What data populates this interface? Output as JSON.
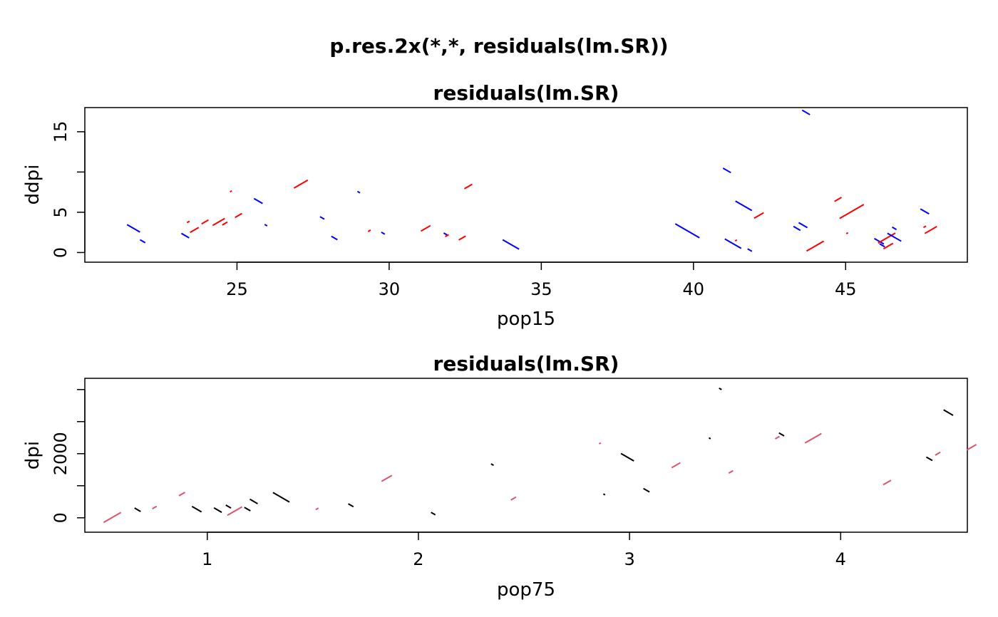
{
  "main_title": "p.res.2x(*,*, residuals(lm.SR))",
  "chart_data": [
    {
      "type": "scatter",
      "title": "residuals(lm.SR)",
      "xlabel": "pop15",
      "ylabel": "ddpi",
      "xlim": [
        20,
        49
      ],
      "ylim": [
        -1.2,
        18
      ],
      "x_ticks": [
        25,
        30,
        35,
        40,
        45
      ],
      "y_ticks": [
        0,
        5,
        10,
        15
      ],
      "y_tick_labels": [
        "0",
        "5",
        "",
        "15"
      ],
      "glyph": "residual segment: positive residual = rising red segment, negative residual = falling blue segment; length proportional to |residual|",
      "colors": {
        "positive": "#ff0000",
        "negative": "#0000ff"
      },
      "points": [
        {
          "x": 21.6,
          "y": 3.0,
          "r": -0.75
        },
        {
          "x": 21.9,
          "y": 1.4,
          "r": -0.3
        },
        {
          "x": 23.3,
          "y": 2.1,
          "r": -0.45
        },
        {
          "x": 23.4,
          "y": 3.8,
          "r": 0.15
        },
        {
          "x": 23.6,
          "y": 2.8,
          "r": 0.5
        },
        {
          "x": 23.95,
          "y": 3.8,
          "r": 0.4
        },
        {
          "x": 24.4,
          "y": 3.8,
          "r": 0.7
        },
        {
          "x": 24.6,
          "y": 3.6,
          "r": 0.3
        },
        {
          "x": 24.8,
          "y": 7.6,
          "r": 0.1
        },
        {
          "x": 25.05,
          "y": 4.6,
          "r": 0.4
        },
        {
          "x": 25.7,
          "y": 6.4,
          "r": -0.5
        },
        {
          "x": 25.95,
          "y": 3.4,
          "r": -0.15
        },
        {
          "x": 27.1,
          "y": 8.5,
          "r": 0.8
        },
        {
          "x": 27.8,
          "y": 4.3,
          "r": -0.25
        },
        {
          "x": 28.2,
          "y": 1.8,
          "r": -0.35
        },
        {
          "x": 29.0,
          "y": 7.5,
          "r": -0.15
        },
        {
          "x": 29.35,
          "y": 2.7,
          "r": 0.15
        },
        {
          "x": 29.8,
          "y": 2.4,
          "r": -0.2
        },
        {
          "x": 31.2,
          "y": 3.0,
          "r": 0.55
        },
        {
          "x": 31.85,
          "y": 2.3,
          "r": -0.2
        },
        {
          "x": 31.9,
          "y": 2.1,
          "r": 0.2
        },
        {
          "x": 32.4,
          "y": 1.8,
          "r": 0.4
        },
        {
          "x": 32.6,
          "y": 8.2,
          "r": 0.45
        },
        {
          "x": 34.0,
          "y": 1.0,
          "r": -0.95
        },
        {
          "x": 39.8,
          "y": 2.7,
          "r": -1.4
        },
        {
          "x": 41.1,
          "y": 10.2,
          "r": -0.45
        },
        {
          "x": 41.3,
          "y": 1.1,
          "r": -0.95
        },
        {
          "x": 41.4,
          "y": 1.5,
          "r": 0.1
        },
        {
          "x": 41.65,
          "y": 5.8,
          "r": -0.95
        },
        {
          "x": 41.85,
          "y": 0.3,
          "r": -0.25
        },
        {
          "x": 42.15,
          "y": 4.6,
          "r": 0.55
        },
        {
          "x": 43.4,
          "y": 3.0,
          "r": -0.4
        },
        {
          "x": 43.6,
          "y": 3.4,
          "r": -0.5
        },
        {
          "x": 43.7,
          "y": 17.4,
          "r": -0.45
        },
        {
          "x": 44.0,
          "y": 0.8,
          "r": 1.0
        },
        {
          "x": 44.75,
          "y": 6.6,
          "r": 0.4
        },
        {
          "x": 45.2,
          "y": 5.1,
          "r": 1.4
        },
        {
          "x": 45.05,
          "y": 2.4,
          "r": 0.1
        },
        {
          "x": 46.1,
          "y": 1.4,
          "r": -0.55
        },
        {
          "x": 46.2,
          "y": 0.9,
          "r": -0.3
        },
        {
          "x": 46.35,
          "y": 1.8,
          "r": 1.0
        },
        {
          "x": 46.4,
          "y": 0.8,
          "r": 0.55
        },
        {
          "x": 46.6,
          "y": 1.9,
          "r": -0.8
        },
        {
          "x": 46.6,
          "y": 3.0,
          "r": -0.25
        },
        {
          "x": 47.6,
          "y": 5.1,
          "r": -0.5
        },
        {
          "x": 47.6,
          "y": 3.2,
          "r": 0.15
        },
        {
          "x": 47.8,
          "y": 2.8,
          "r": 0.7
        }
      ]
    },
    {
      "type": "scatter",
      "title": "residuals(lm.SR)",
      "xlabel": "pop75",
      "ylabel": "dpi",
      "xlim": [
        0.42,
        4.6
      ],
      "ylim": [
        -450,
        4350
      ],
      "x_ticks": [
        1,
        2,
        3,
        4
      ],
      "y_ticks": [
        0,
        1000,
        2000,
        3000,
        4000
      ],
      "y_tick_labels": [
        "0",
        "",
        "2000",
        "",
        ""
      ],
      "glyph": "residual segment: positive residual = rising red segment, negative residual = falling black segment; length proportional to |residual|",
      "colors": {
        "positive": "#df536b",
        "negative": "#000000"
      },
      "points": [
        {
          "x": 0.55,
          "y": 10,
          "r": 1.0
        },
        {
          "x": 0.67,
          "y": 250,
          "r": -0.35
        },
        {
          "x": 0.75,
          "y": 320,
          "r": 0.25
        },
        {
          "x": 0.88,
          "y": 740,
          "r": 0.35
        },
        {
          "x": 0.95,
          "y": 270,
          "r": -0.55
        },
        {
          "x": 1.05,
          "y": 240,
          "r": -0.45
        },
        {
          "x": 1.1,
          "y": 350,
          "r": -0.3
        },
        {
          "x": 1.13,
          "y": 210,
          "r": 0.85
        },
        {
          "x": 1.19,
          "y": 270,
          "r": -0.35
        },
        {
          "x": 1.22,
          "y": 510,
          "r": -0.45
        },
        {
          "x": 1.35,
          "y": 640,
          "r": -0.95
        },
        {
          "x": 1.52,
          "y": 280,
          "r": 0.15
        },
        {
          "x": 1.68,
          "y": 390,
          "r": -0.3
        },
        {
          "x": 1.85,
          "y": 1230,
          "r": 0.6
        },
        {
          "x": 2.07,
          "y": 130,
          "r": -0.25
        },
        {
          "x": 2.35,
          "y": 1660,
          "r": -0.15
        },
        {
          "x": 2.45,
          "y": 600,
          "r": 0.3
        },
        {
          "x": 2.86,
          "y": 2320,
          "r": 0.1
        },
        {
          "x": 2.88,
          "y": 730,
          "r": -0.1
        },
        {
          "x": 2.99,
          "y": 1890,
          "r": -0.75
        },
        {
          "x": 3.08,
          "y": 860,
          "r": -0.35
        },
        {
          "x": 3.22,
          "y": 1640,
          "r": 0.5
        },
        {
          "x": 3.38,
          "y": 2480,
          "r": -0.1
        },
        {
          "x": 3.43,
          "y": 4020,
          "r": -0.15
        },
        {
          "x": 3.48,
          "y": 1430,
          "r": 0.25
        },
        {
          "x": 3.7,
          "y": 2500,
          "r": 0.25
        },
        {
          "x": 3.72,
          "y": 2600,
          "r": -0.3
        },
        {
          "x": 3.87,
          "y": 2480,
          "r": 0.95
        },
        {
          "x": 4.22,
          "y": 1100,
          "r": 0.45
        },
        {
          "x": 4.42,
          "y": 1840,
          "r": -0.35
        },
        {
          "x": 4.46,
          "y": 2000,
          "r": 0.3
        },
        {
          "x": 4.51,
          "y": 3280,
          "r": -0.55
        },
        {
          "x": 4.62,
          "y": 2200,
          "r": 0.55
        }
      ]
    }
  ]
}
